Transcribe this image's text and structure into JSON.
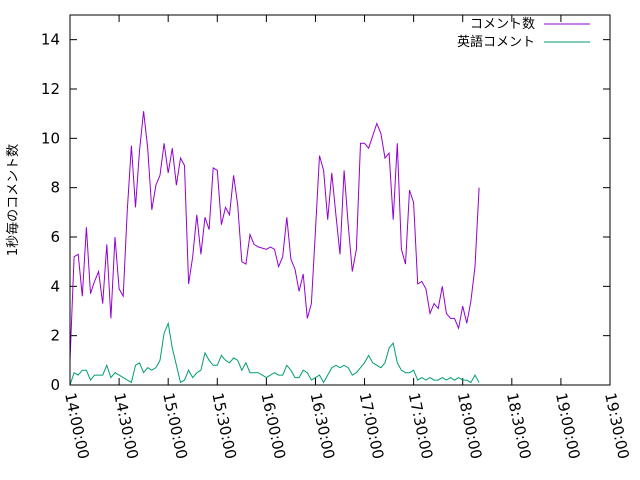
{
  "chart_data": {
    "type": "line",
    "title": "",
    "xlabel": "",
    "ylabel": "1秒毎のコメント数",
    "xlim": [
      "14:00:00",
      "19:30:00"
    ],
    "ylim": [
      0,
      15
    ],
    "xticks": [
      "14:00:00",
      "14:30:00",
      "15:00:00",
      "15:30:00",
      "16:00:00",
      "16:30:00",
      "17:00:00",
      "17:30:00",
      "18:00:00",
      "18:30:00",
      "19:00:00",
      "19:30:00"
    ],
    "yticks": [
      "0",
      "2",
      "4",
      "6",
      "8",
      "10",
      "12",
      "14"
    ],
    "legend_position": "top-right",
    "grid": false,
    "series": [
      {
        "name": "コメント数",
        "color": "#9400d3",
        "points": [
          [
            "14:00:00",
            1.0
          ],
          [
            "14:02:30",
            5.2
          ],
          [
            "14:05:00",
            5.3
          ],
          [
            "14:07:30",
            3.6
          ],
          [
            "14:10:00",
            6.4
          ],
          [
            "14:12:30",
            3.7
          ],
          [
            "14:15:00",
            4.2
          ],
          [
            "14:17:30",
            4.6
          ],
          [
            "14:20:00",
            3.3
          ],
          [
            "14:22:30",
            5.7
          ],
          [
            "14:25:00",
            2.7
          ],
          [
            "14:27:30",
            6.0
          ],
          [
            "14:30:00",
            3.9
          ],
          [
            "14:32:30",
            3.6
          ],
          [
            "14:35:00",
            7.1
          ],
          [
            "14:37:30",
            9.7
          ],
          [
            "14:40:00",
            7.2
          ],
          [
            "14:42:30",
            9.5
          ],
          [
            "14:45:00",
            11.1
          ],
          [
            "14:47:30",
            9.6
          ],
          [
            "14:50:00",
            7.1
          ],
          [
            "14:52:30",
            8.1
          ],
          [
            "14:55:00",
            8.5
          ],
          [
            "14:57:30",
            9.8
          ],
          [
            "15:00:00",
            8.6
          ],
          [
            "15:02:30",
            9.6
          ],
          [
            "15:05:00",
            8.1
          ],
          [
            "15:07:30",
            9.2
          ],
          [
            "15:10:00",
            8.9
          ],
          [
            "15:12:30",
            4.1
          ],
          [
            "15:15:00",
            5.2
          ],
          [
            "15:17:30",
            6.9
          ],
          [
            "15:20:00",
            5.3
          ],
          [
            "15:22:30",
            6.8
          ],
          [
            "15:25:00",
            6.3
          ],
          [
            "15:27:30",
            8.8
          ],
          [
            "15:30:00",
            8.7
          ],
          [
            "15:32:30",
            6.5
          ],
          [
            "15:35:00",
            7.2
          ],
          [
            "15:37:30",
            6.9
          ],
          [
            "15:40:00",
            8.5
          ],
          [
            "15:42:30",
            7.3
          ],
          [
            "15:45:00",
            5.0
          ],
          [
            "15:47:30",
            4.9
          ],
          [
            "15:50:00",
            6.1
          ],
          [
            "15:52:30",
            5.7
          ],
          [
            "15:55:00",
            5.6
          ],
          [
            "16:00:00",
            5.5
          ],
          [
            "16:02:30",
            5.6
          ],
          [
            "16:05:00",
            5.5
          ],
          [
            "16:07:30",
            4.8
          ],
          [
            "16:10:00",
            5.2
          ],
          [
            "16:12:30",
            6.8
          ],
          [
            "16:15:00",
            5.1
          ],
          [
            "16:17:30",
            4.7
          ],
          [
            "16:20:00",
            3.8
          ],
          [
            "16:22:30",
            4.5
          ],
          [
            "16:25:00",
            2.7
          ],
          [
            "16:27:30",
            3.3
          ],
          [
            "16:30:00",
            6.3
          ],
          [
            "16:32:30",
            9.3
          ],
          [
            "16:35:00",
            8.7
          ],
          [
            "16:37:30",
            6.7
          ],
          [
            "16:40:00",
            8.6
          ],
          [
            "16:42:30",
            6.9
          ],
          [
            "16:45:00",
            5.3
          ],
          [
            "16:47:30",
            8.7
          ],
          [
            "16:50:00",
            6.5
          ],
          [
            "16:52:30",
            4.6
          ],
          [
            "16:55:00",
            5.5
          ],
          [
            "16:57:30",
            9.8
          ],
          [
            "17:00:00",
            9.8
          ],
          [
            "17:02:30",
            9.6
          ],
          [
            "17:05:00",
            10.1
          ],
          [
            "17:07:30",
            10.6
          ],
          [
            "17:10:00",
            10.2
          ],
          [
            "17:12:30",
            9.2
          ],
          [
            "17:15:00",
            9.4
          ],
          [
            "17:17:30",
            6.7
          ],
          [
            "17:20:00",
            9.8
          ],
          [
            "17:22:30",
            5.5
          ],
          [
            "17:25:00",
            4.9
          ],
          [
            "17:27:30",
            7.9
          ],
          [
            "17:30:00",
            7.4
          ],
          [
            "17:32:30",
            4.1
          ],
          [
            "17:35:00",
            4.2
          ],
          [
            "17:37:30",
            3.9
          ],
          [
            "17:40:00",
            2.9
          ],
          [
            "17:42:30",
            3.3
          ],
          [
            "17:45:00",
            3.1
          ],
          [
            "17:47:30",
            4.0
          ],
          [
            "17:50:00",
            2.9
          ],
          [
            "17:52:30",
            2.7
          ],
          [
            "17:55:00",
            2.7
          ],
          [
            "17:57:30",
            2.3
          ],
          [
            "18:00:00",
            3.2
          ],
          [
            "18:02:30",
            2.5
          ],
          [
            "18:05:00",
            3.4
          ],
          [
            "18:07:30",
            4.8
          ],
          [
            "18:10:00",
            8.0
          ]
        ]
      },
      {
        "name": "英語コメント",
        "color": "#009e73",
        "points": [
          [
            "14:00:00",
            0.0
          ],
          [
            "14:02:30",
            0.5
          ],
          [
            "14:05:00",
            0.4
          ],
          [
            "14:07:30",
            0.6
          ],
          [
            "14:10:00",
            0.6
          ],
          [
            "14:12:30",
            0.2
          ],
          [
            "14:15:00",
            0.4
          ],
          [
            "14:17:30",
            0.4
          ],
          [
            "14:20:00",
            0.4
          ],
          [
            "14:22:30",
            0.8
          ],
          [
            "14:25:00",
            0.3
          ],
          [
            "14:27:30",
            0.5
          ],
          [
            "14:30:00",
            0.4
          ],
          [
            "14:32:30",
            0.3
          ],
          [
            "14:35:00",
            0.2
          ],
          [
            "14:37:30",
            0.1
          ],
          [
            "14:40:00",
            0.8
          ],
          [
            "14:42:30",
            0.9
          ],
          [
            "14:45:00",
            0.5
          ],
          [
            "14:47:30",
            0.7
          ],
          [
            "14:50:00",
            0.6
          ],
          [
            "14:52:30",
            0.7
          ],
          [
            "14:55:00",
            1.0
          ],
          [
            "14:57:30",
            2.1
          ],
          [
            "15:00:00",
            2.5
          ],
          [
            "15:02:30",
            1.5
          ],
          [
            "15:05:00",
            0.8
          ],
          [
            "15:07:30",
            0.1
          ],
          [
            "15:10:00",
            0.2
          ],
          [
            "15:12:30",
            0.6
          ],
          [
            "15:15:00",
            0.3
          ],
          [
            "15:17:30",
            0.5
          ],
          [
            "15:20:00",
            0.6
          ],
          [
            "15:22:30",
            1.3
          ],
          [
            "15:25:00",
            1.0
          ],
          [
            "15:27:30",
            0.8
          ],
          [
            "15:30:00",
            0.8
          ],
          [
            "15:32:30",
            1.2
          ],
          [
            "15:35:00",
            1.0
          ],
          [
            "15:37:30",
            0.9
          ],
          [
            "15:40:00",
            1.1
          ],
          [
            "15:42:30",
            1.0
          ],
          [
            "15:45:00",
            0.6
          ],
          [
            "15:47:30",
            0.9
          ],
          [
            "15:50:00",
            0.5
          ],
          [
            "15:52:30",
            0.5
          ],
          [
            "15:55:00",
            0.5
          ],
          [
            "16:00:00",
            0.3
          ],
          [
            "16:02:30",
            0.4
          ],
          [
            "16:05:00",
            0.5
          ],
          [
            "16:07:30",
            0.4
          ],
          [
            "16:10:00",
            0.4
          ],
          [
            "16:12:30",
            0.8
          ],
          [
            "16:15:00",
            0.6
          ],
          [
            "16:17:30",
            0.3
          ],
          [
            "16:20:00",
            0.3
          ],
          [
            "16:22:30",
            0.6
          ],
          [
            "16:25:00",
            0.5
          ],
          [
            "16:27:30",
            0.2
          ],
          [
            "16:30:00",
            0.3
          ],
          [
            "16:32:30",
            0.4
          ],
          [
            "16:35:00",
            0.1
          ],
          [
            "16:37:30",
            0.4
          ],
          [
            "16:40:00",
            0.7
          ],
          [
            "16:42:30",
            0.8
          ],
          [
            "16:45:00",
            0.7
          ],
          [
            "16:47:30",
            0.8
          ],
          [
            "16:50:00",
            0.7
          ],
          [
            "16:52:30",
            0.4
          ],
          [
            "16:55:00",
            0.5
          ],
          [
            "16:57:30",
            0.7
          ],
          [
            "17:00:00",
            0.9
          ],
          [
            "17:02:30",
            1.2
          ],
          [
            "17:05:00",
            0.9
          ],
          [
            "17:07:30",
            0.8
          ],
          [
            "17:10:00",
            0.7
          ],
          [
            "17:12:30",
            0.9
          ],
          [
            "17:15:00",
            1.5
          ],
          [
            "17:17:30",
            1.7
          ],
          [
            "17:20:00",
            0.9
          ],
          [
            "17:22:30",
            0.6
          ],
          [
            "17:25:00",
            0.5
          ],
          [
            "17:27:30",
            0.5
          ],
          [
            "17:30:00",
            0.6
          ],
          [
            "17:32:30",
            0.2
          ],
          [
            "17:35:00",
            0.3
          ],
          [
            "17:37:30",
            0.2
          ],
          [
            "17:40:00",
            0.3
          ],
          [
            "17:42:30",
            0.2
          ],
          [
            "17:45:00",
            0.2
          ],
          [
            "17:47:30",
            0.3
          ],
          [
            "17:50:00",
            0.2
          ],
          [
            "17:52:30",
            0.3
          ],
          [
            "17:55:00",
            0.2
          ],
          [
            "17:57:30",
            0.3
          ],
          [
            "18:00:00",
            0.2
          ],
          [
            "18:02:30",
            0.2
          ],
          [
            "18:05:00",
            0.1
          ],
          [
            "18:07:30",
            0.4
          ],
          [
            "18:10:00",
            0.1
          ]
        ]
      }
    ]
  }
}
